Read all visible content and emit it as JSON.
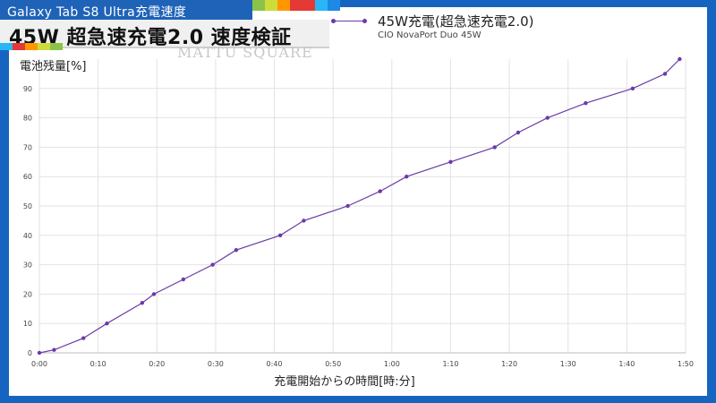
{
  "banner": {
    "title": "Galaxy Tab S8 Ultra充電速度"
  },
  "headline": {
    "title": "45W 超急速充電2.0 速度検証"
  },
  "watermark": "MATTU SQUARE",
  "colors": {
    "frame": "#1565c0",
    "series": "#6a3aa8",
    "strip": [
      "#8bc34a",
      "#cddc39",
      "#ff9800",
      "#e53935",
      "#e53935",
      "#29b6f6",
      "#1e88e5"
    ],
    "strip2": [
      "#29b6f6",
      "#e53935",
      "#ff9800",
      "#cddc39",
      "#8bc34a"
    ]
  },
  "chart_data": {
    "type": "line",
    "title": "",
    "xlabel": "充電開始からの時間[時:分]",
    "ylabel": "電池残量[%]",
    "xlim": [
      0,
      110
    ],
    "ylim": [
      0,
      100
    ],
    "x_unit": "minutes",
    "x_tick_values": [
      0,
      10,
      20,
      30,
      40,
      50,
      60,
      70,
      80,
      90,
      100,
      110
    ],
    "x_tick_labels": [
      "0:00",
      "0:10",
      "0:20",
      "0:30",
      "0:40",
      "0:50",
      "1:00",
      "1:10",
      "1:20",
      "1:30",
      "1:40",
      "1:50"
    ],
    "y_ticks": [
      0,
      10,
      20,
      30,
      40,
      50,
      60,
      70,
      80,
      90
    ],
    "grid": true,
    "legend_position": "top",
    "series": [
      {
        "name": "45W充電(超急速充電2.0)",
        "subtitle": "CIO NovaPort Duo 45W",
        "x": [
          0,
          2.5,
          7.5,
          11.5,
          17.5,
          19.5,
          24.5,
          29.5,
          33.5,
          41,
          45,
          52.5,
          58,
          62.5,
          70,
          77.5,
          81.5,
          86.5,
          93,
          101,
          106.5,
          109
        ],
        "y": [
          0,
          1,
          5,
          10,
          17,
          20,
          25,
          30,
          35,
          40,
          45,
          50,
          55,
          60,
          65,
          70,
          75,
          80,
          85,
          90,
          95,
          100
        ]
      }
    ]
  }
}
